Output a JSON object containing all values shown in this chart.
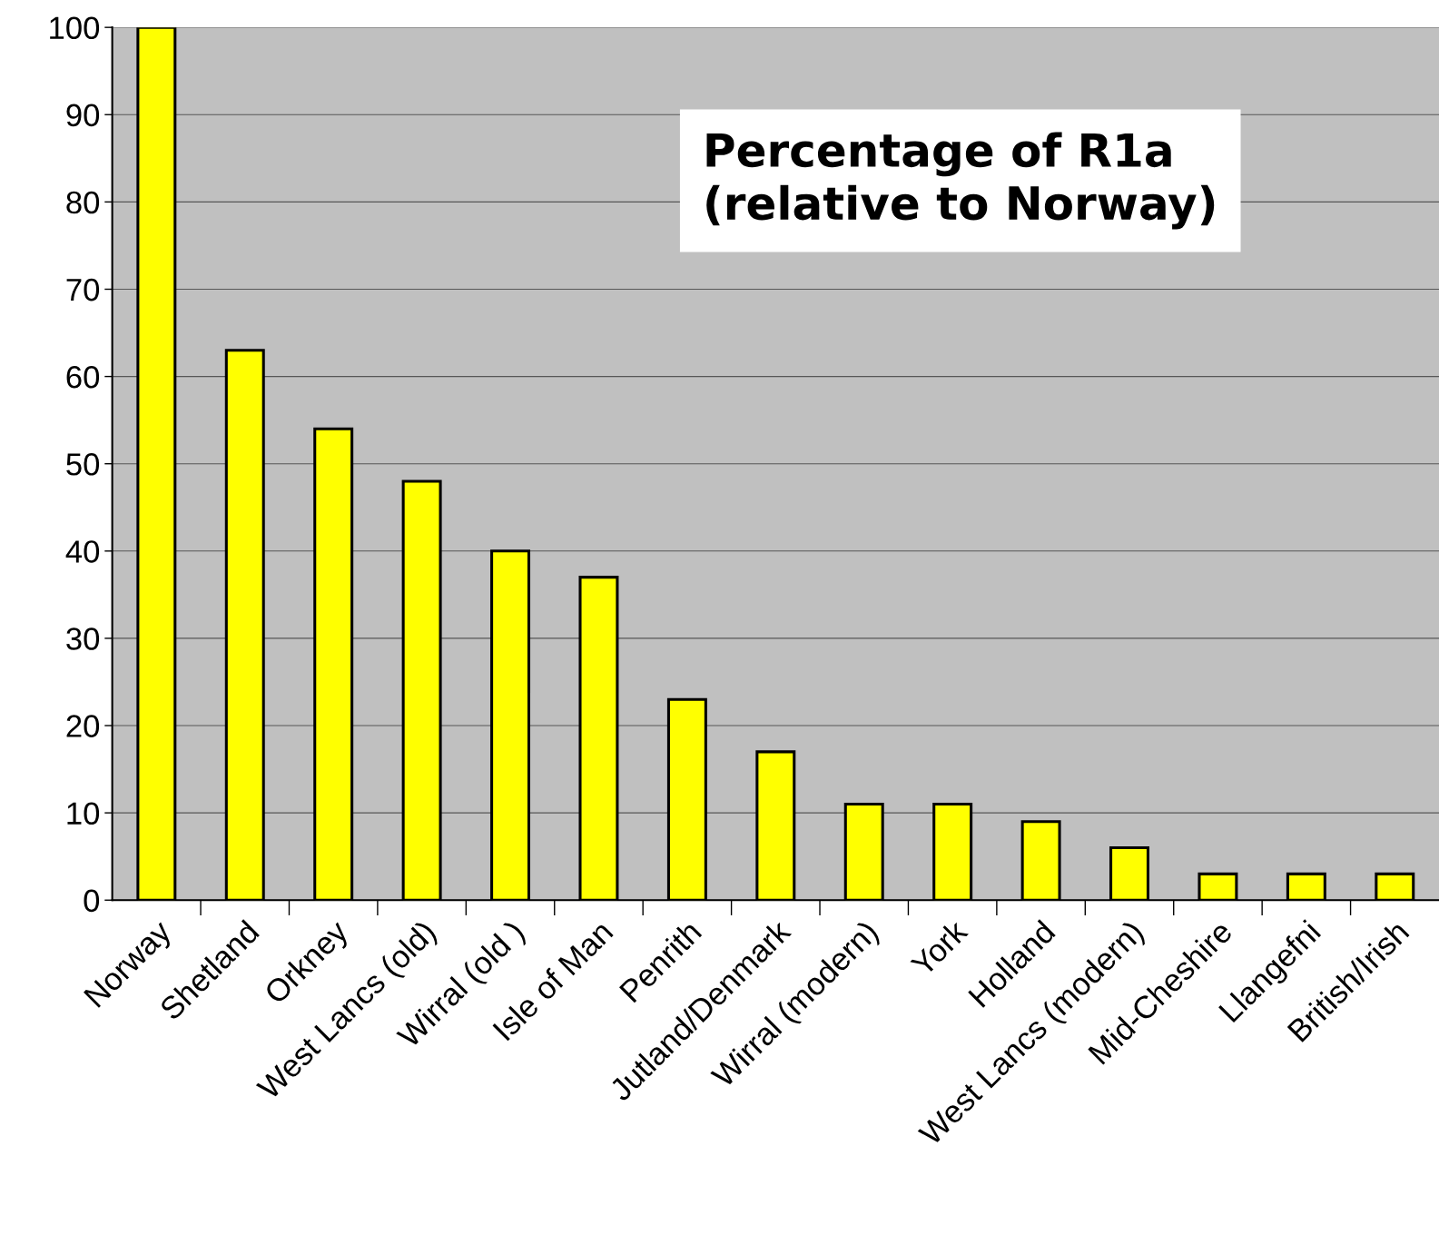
{
  "chart_data": {
    "type": "bar",
    "title": "Percentage of R1a\n(relative to Norway)",
    "categories": [
      "Norway",
      "Shetland",
      "Orkney",
      "West Lancs (old)",
      "Wirral (old )",
      "Isle of Man",
      "Penrith",
      "Jutland/Denmark",
      "Wirral (modern)",
      "York",
      "Holland",
      "West Lancs (modern)",
      "Mid-Cheshire",
      "Llangefni",
      "British/Irish"
    ],
    "values": [
      100,
      63,
      54,
      48,
      40,
      37,
      23,
      17,
      11,
      11,
      9,
      6,
      3,
      3,
      3
    ],
    "color": "#ffff00",
    "ylim": [
      0,
      100
    ],
    "yticks": [
      0,
      10,
      20,
      30,
      40,
      50,
      60,
      70,
      80,
      90,
      100
    ],
    "grid": "y",
    "legend": false
  }
}
